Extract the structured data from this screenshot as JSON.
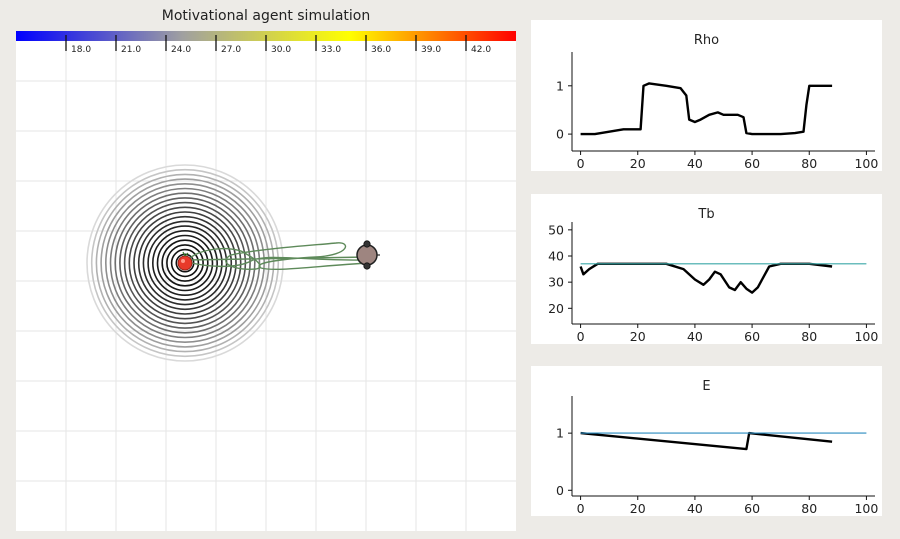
{
  "simulation": {
    "title": "Motivational agent simulation",
    "colorbar": {
      "stops": [
        "#0000ff",
        "#a0a0a0",
        "#ffff00",
        "#ff0000"
      ],
      "ticks": [
        "18.0",
        "21.0",
        "24.0",
        "27.0",
        "30.0",
        "33.0",
        "36.0",
        "39.0",
        "42.0"
      ]
    },
    "grid_color": "#e6e6e6",
    "trail_color": "#5e8a5a",
    "agent_color": "#9e8580",
    "food_color": "#e83a2a",
    "ring_dark": "#111111",
    "ring_light": "#d0d0d0"
  },
  "chart_data": [
    {
      "type": "line",
      "title": "Rho",
      "xlim": [
        -3,
        103
      ],
      "ylim": [
        -0.35,
        1.7
      ],
      "xticks": [
        "0",
        "20",
        "40",
        "60",
        "80",
        "100"
      ],
      "yticks": [
        "0",
        "1"
      ],
      "series": [
        {
          "color": "#000000",
          "x": [
            0,
            5,
            10,
            15,
            21,
            22,
            24,
            30,
            35,
            37,
            38,
            40,
            42,
            45,
            48,
            50,
            55,
            57,
            58,
            60,
            65,
            70,
            75,
            78,
            79,
            80,
            85,
            88
          ],
          "y": [
            0,
            0,
            0.05,
            0.1,
            0.1,
            1.0,
            1.05,
            1.0,
            0.95,
            0.8,
            0.3,
            0.25,
            0.3,
            0.4,
            0.45,
            0.4,
            0.4,
            0.35,
            0.02,
            0,
            0,
            0,
            0.02,
            0.05,
            0.6,
            1.0,
            1.0,
            1.0
          ]
        }
      ]
    },
    {
      "type": "line",
      "title": "Tb",
      "xlim": [
        -3,
        103
      ],
      "ylim": [
        14,
        53
      ],
      "xticks": [
        "0",
        "20",
        "40",
        "60",
        "80",
        "100"
      ],
      "yticks": [
        "20",
        "30",
        "40",
        "50"
      ],
      "series": [
        {
          "color": "#000000",
          "x": [
            0,
            1,
            3,
            6,
            10,
            20,
            30,
            36,
            40,
            43,
            45,
            47,
            49,
            52,
            54,
            56,
            58,
            60,
            62,
            64,
            66,
            70,
            80,
            88
          ],
          "y": [
            36,
            33,
            35,
            37,
            37,
            37,
            37,
            35,
            31,
            29,
            31,
            34,
            33,
            28,
            27,
            30,
            27.5,
            26,
            28,
            32,
            36,
            37,
            37,
            36
          ]
        },
        {
          "color": "#3aa7a7",
          "x": [
            0,
            100
          ],
          "y": [
            37,
            37
          ]
        }
      ]
    },
    {
      "type": "line",
      "title": "E",
      "xlim": [
        -3,
        103
      ],
      "ylim": [
        -0.1,
        1.65
      ],
      "xticks": [
        "0",
        "20",
        "40",
        "60",
        "80",
        "100"
      ],
      "yticks": [
        "0",
        "1"
      ],
      "series": [
        {
          "color": "#000000",
          "x": [
            0,
            58,
            59,
            88
          ],
          "y": [
            1.0,
            0.72,
            1.0,
            0.85
          ]
        },
        {
          "color": "#2a8bbf",
          "x": [
            0,
            100
          ],
          "y": [
            1.0,
            1.0
          ]
        }
      ]
    }
  ]
}
